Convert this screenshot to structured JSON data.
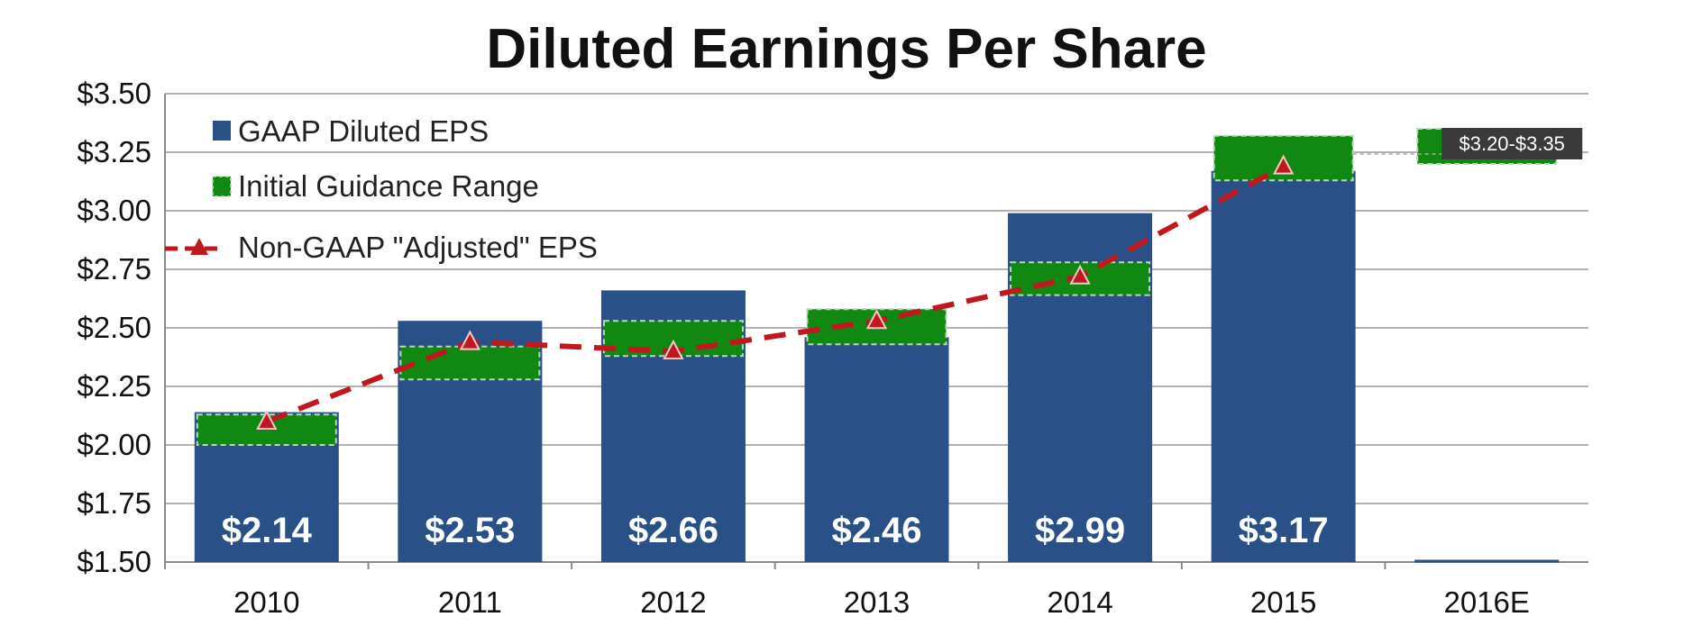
{
  "chart_data": {
    "type": "bar",
    "title": "Diluted Earnings Per Share",
    "categories": [
      "2010",
      "2011",
      "2012",
      "2013",
      "2014",
      "2015",
      "2016E"
    ],
    "ylim": [
      1.5,
      3.5
    ],
    "yticks": [
      "$1.50",
      "$1.75",
      "$2.00",
      "$2.25",
      "$2.50",
      "$2.75",
      "$3.00",
      "$3.25",
      "$3.50"
    ],
    "ytick_values": [
      1.5,
      1.75,
      2.0,
      2.25,
      2.5,
      2.75,
      3.0,
      3.25,
      3.5
    ],
    "grid": true,
    "legend_position": "top-left",
    "series": [
      {
        "name": "GAAP Diluted EPS",
        "kind": "bar",
        "color": "#2a5088",
        "values": [
          2.14,
          2.53,
          2.66,
          2.46,
          2.99,
          3.17,
          null
        ],
        "labels": [
          "$2.14",
          "$2.53",
          "$2.66",
          "$2.46",
          "$2.99",
          "$3.17",
          ""
        ]
      },
      {
        "name": "Initial Guidance Range",
        "kind": "range",
        "color": "#118811",
        "ranges": [
          [
            2.0,
            2.13
          ],
          [
            2.28,
            2.42
          ],
          [
            2.38,
            2.53
          ],
          [
            2.43,
            2.58
          ],
          [
            2.64,
            2.78
          ],
          [
            3.13,
            3.32
          ],
          [
            3.2,
            3.35
          ]
        ]
      },
      {
        "name": "Non-GAAP \"Adjusted\" EPS",
        "kind": "line",
        "color": "#c0181e",
        "values": [
          2.1,
          2.44,
          2.4,
          2.53,
          2.72,
          3.19,
          null
        ]
      }
    ],
    "annotations": [
      {
        "category": "2016E",
        "text": "$3.20-$3.35"
      }
    ]
  }
}
